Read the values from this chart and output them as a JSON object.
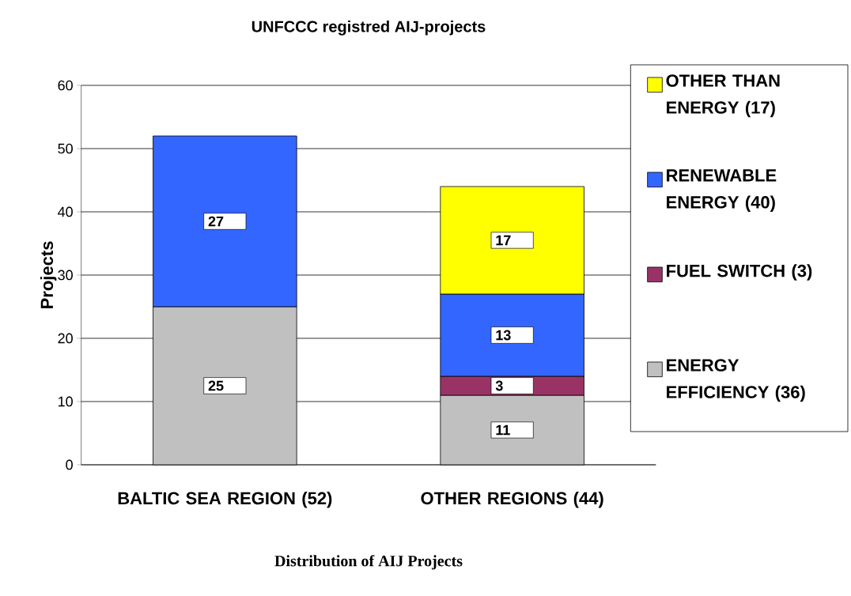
{
  "chart_data": {
    "type": "bar",
    "stacked": true,
    "title": "UNFCCC registred AIJ-projects",
    "ylabel": "Projects",
    "annotations": [
      "Distribution of AIJ Projects"
    ],
    "categories": [
      "BALTIC SEA REGION (52)",
      "OTHER REGIONS (44)"
    ],
    "series": [
      {
        "name": "ENERGY EFFICIENCY (36)",
        "color": "#c0c0c0",
        "values": [
          25,
          11
        ]
      },
      {
        "name": "FUEL SWITCH (3)",
        "color": "#993366",
        "values": [
          null,
          3
        ]
      },
      {
        "name": "RENEWABLE ENERGY (40)",
        "color": "#3366ff",
        "values": [
          27,
          13
        ]
      },
      {
        "name": "OTHER THAN ENERGY (17)",
        "color": "#ffff00",
        "values": [
          null,
          17
        ]
      }
    ],
    "ylim": [
      0,
      60
    ],
    "yticks": [
      0,
      10,
      20,
      30,
      40,
      50,
      60
    ],
    "grid": "y",
    "legend": "right",
    "data_labels": true
  }
}
